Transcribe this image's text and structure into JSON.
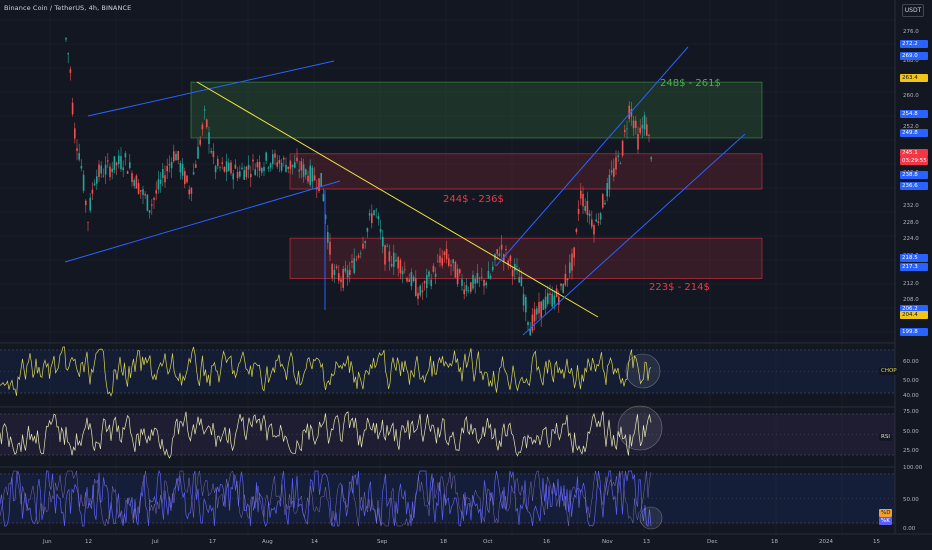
{
  "header": {
    "symbol_line": "Binance Coin / TetherUS, 4h, BINANCE",
    "currency": "USDT"
  },
  "zones": {
    "upper_label": "248$ - 261$",
    "middle_label": "244$ - 236$",
    "lower_label": "223$ - 214$"
  },
  "price_axis": {
    "ticks": [
      "276.0",
      "268.0",
      "260.0",
      "252.0",
      "248.0",
      "240.0",
      "232.0",
      "228.0",
      "224.0",
      "220.0",
      "212.0",
      "208.0",
      "200.0"
    ],
    "tags": [
      {
        "text": "272.2",
        "color": "#2962ff"
      },
      {
        "text": "269.0",
        "color": "#2962ff"
      },
      {
        "text": "263.4",
        "color": "#f0c419",
        "dark": true
      },
      {
        "text": "254.8",
        "color": "#2962ff"
      },
      {
        "text": "249.8",
        "color": "#2962ff"
      },
      {
        "text": "245.1",
        "color": "#f23645"
      },
      {
        "text": "03:29:55",
        "color": "#f23645"
      },
      {
        "text": "238.8",
        "color": "#2962ff"
      },
      {
        "text": "236.6",
        "color": "#2962ff"
      },
      {
        "text": "218.5",
        "color": "#2962ff"
      },
      {
        "text": "217.3",
        "color": "#2962ff"
      },
      {
        "text": "206.2",
        "color": "#2962ff"
      },
      {
        "text": "204.4",
        "color": "#f0c419",
        "dark": true
      },
      {
        "text": "199.8",
        "color": "#2962ff"
      }
    ]
  },
  "indicators": {
    "chop": {
      "label": "CHOP",
      "ticks": [
        "60.00",
        "50.00",
        "40.00"
      ]
    },
    "rsi": {
      "label": "RSI",
      "ticks": [
        "75.00",
        "50.00",
        "25.00"
      ]
    },
    "stoch": {
      "label_d": "%D",
      "label_k": "%K",
      "ticks": [
        "100.00",
        "50.00",
        "0.00"
      ]
    }
  },
  "time_axis": [
    "Jun",
    "12",
    "Jul",
    "17",
    "Aug",
    "14",
    "Sep",
    "18",
    "Oct",
    "16",
    "Nov",
    "13",
    "Dec",
    "18",
    "2024",
    "15"
  ]
}
